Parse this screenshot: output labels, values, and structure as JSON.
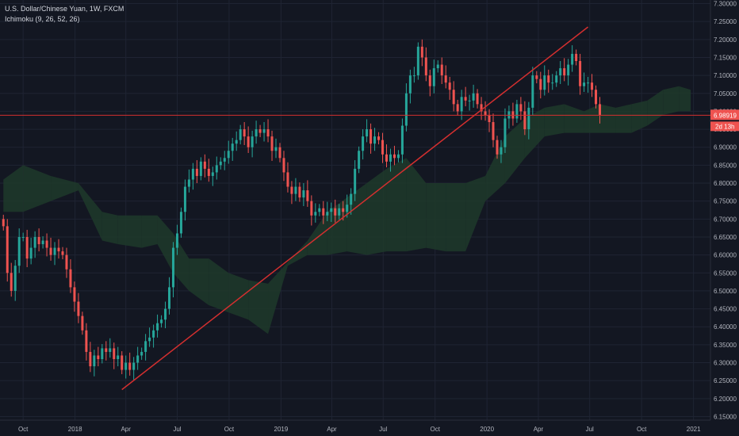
{
  "header": {
    "title": "U.S. Dollar/Chinese Yuan, 1W, FXCM",
    "indicator": "Ichimoku (9, 26, 52, 26)"
  },
  "colors": {
    "background": "#131722",
    "grid": "#1f2433",
    "up": "#26a69a",
    "down": "#ef5350",
    "trendline": "#d32f2f",
    "cloud_bull": "#1e3a2a",
    "cloud_bear": "#4a2226",
    "price_label": "#ef5350",
    "axis_text": "#b2b5be"
  },
  "price_label": {
    "value": "6.98919",
    "countdown": "2d 13h"
  },
  "chart_data": {
    "type": "candlestick",
    "title": "U.S. Dollar/Chinese Yuan, 1W, FXCM",
    "interval": "1W",
    "x_tick_labels": [
      "Oct",
      "2018",
      "Apr",
      "Jul",
      "Oct",
      "2019",
      "Apr",
      "Jul",
      "Oct",
      "2020",
      "Apr",
      "Jul",
      "Oct",
      "2021"
    ],
    "x_tick_dates": [
      "2017-10-01",
      "2018-01-01",
      "2018-04-01",
      "2018-07-01",
      "2018-10-01",
      "2019-01-01",
      "2019-04-01",
      "2019-07-01",
      "2019-10-01",
      "2020-01-01",
      "2020-04-01",
      "2020-07-01",
      "2020-10-01",
      "2021-01-01"
    ],
    "y_tick_labels": [
      "7.30000",
      "7.25000",
      "7.20000",
      "7.15000",
      "7.10000",
      "7.05000",
      "7.00000",
      "6.95000",
      "6.90000",
      "6.85000",
      "6.80000",
      "6.75000",
      "6.70000",
      "6.65000",
      "6.60000",
      "6.55000",
      "6.50000",
      "6.45000",
      "6.40000",
      "6.35000",
      "6.30000",
      "6.25000",
      "6.20000",
      "6.15000"
    ],
    "ylim": [
      6.14,
      7.31
    ],
    "x_range": [
      "2017-08-21",
      "2021-01-31"
    ],
    "grid": true,
    "current_price": 6.98919,
    "candles": [
      {
        "t": "2017-08-27",
        "c": 6.68
      },
      {
        "t": "2017-09-03",
        "c": 6.55
      },
      {
        "t": "2017-09-10",
        "c": 6.5
      },
      {
        "t": "2017-09-17",
        "c": 6.57
      },
      {
        "t": "2017-09-24",
        "c": 6.65
      },
      {
        "t": "2017-10-01",
        "c": 6.65
      },
      {
        "t": "2017-10-08",
        "c": 6.59
      },
      {
        "t": "2017-10-15",
        "c": 6.62
      },
      {
        "t": "2017-10-22",
        "c": 6.65
      },
      {
        "t": "2017-10-29",
        "c": 6.63
      },
      {
        "t": "2017-11-05",
        "c": 6.64
      },
      {
        "t": "2017-11-12",
        "c": 6.62
      },
      {
        "t": "2017-11-19",
        "c": 6.6
      },
      {
        "t": "2017-11-26",
        "c": 6.62
      },
      {
        "t": "2017-12-03",
        "c": 6.61
      },
      {
        "t": "2017-12-10",
        "c": 6.6
      },
      {
        "t": "2017-12-17",
        "c": 6.56
      },
      {
        "t": "2017-12-24",
        "c": 6.51
      },
      {
        "t": "2017-12-31",
        "c": 6.47
      },
      {
        "t": "2018-01-07",
        "c": 6.43
      },
      {
        "t": "2018-01-14",
        "c": 6.39
      },
      {
        "t": "2018-01-21",
        "c": 6.33
      },
      {
        "t": "2018-01-28",
        "c": 6.29
      },
      {
        "t": "2018-02-04",
        "c": 6.32
      },
      {
        "t": "2018-02-11",
        "c": 6.31
      },
      {
        "t": "2018-02-18",
        "c": 6.34
      },
      {
        "t": "2018-02-25",
        "c": 6.33
      },
      {
        "t": "2018-03-04",
        "c": 6.34
      },
      {
        "t": "2018-03-11",
        "c": 6.31
      },
      {
        "t": "2018-03-18",
        "c": 6.32
      },
      {
        "t": "2018-03-25",
        "c": 6.28
      },
      {
        "t": "2018-04-01",
        "c": 6.3
      },
      {
        "t": "2018-04-08",
        "c": 6.28
      },
      {
        "t": "2018-04-15",
        "c": 6.3
      },
      {
        "t": "2018-04-22",
        "c": 6.32
      },
      {
        "t": "2018-04-29",
        "c": 6.33
      },
      {
        "t": "2018-05-06",
        "c": 6.36
      },
      {
        "t": "2018-05-13",
        "c": 6.37
      },
      {
        "t": "2018-05-20",
        "c": 6.39
      },
      {
        "t": "2018-05-27",
        "c": 6.41
      },
      {
        "t": "2018-06-03",
        "c": 6.42
      },
      {
        "t": "2018-06-10",
        "c": 6.45
      },
      {
        "t": "2018-06-17",
        "c": 6.51
      },
      {
        "t": "2018-06-24",
        "c": 6.62
      },
      {
        "t": "2018-07-01",
        "c": 6.66
      },
      {
        "t": "2018-07-08",
        "c": 6.72
      },
      {
        "t": "2018-07-15",
        "c": 6.79
      },
      {
        "t": "2018-07-22",
        "c": 6.81
      },
      {
        "t": "2018-07-29",
        "c": 6.84
      },
      {
        "t": "2018-08-05",
        "c": 6.82
      },
      {
        "t": "2018-08-12",
        "c": 6.86
      },
      {
        "t": "2018-08-19",
        "c": 6.84
      },
      {
        "t": "2018-08-26",
        "c": 6.82
      },
      {
        "t": "2018-09-02",
        "c": 6.83
      },
      {
        "t": "2018-09-09",
        "c": 6.85
      },
      {
        "t": "2018-09-16",
        "c": 6.86
      },
      {
        "t": "2018-09-23",
        "c": 6.87
      },
      {
        "t": "2018-09-30",
        "c": 6.89
      },
      {
        "t": "2018-10-07",
        "c": 6.91
      },
      {
        "t": "2018-10-14",
        "c": 6.92
      },
      {
        "t": "2018-10-21",
        "c": 6.95
      },
      {
        "t": "2018-10-28",
        "c": 6.93
      },
      {
        "t": "2018-11-04",
        "c": 6.9
      },
      {
        "t": "2018-11-11",
        "c": 6.93
      },
      {
        "t": "2018-11-18",
        "c": 6.95
      },
      {
        "t": "2018-11-25",
        "c": 6.94
      },
      {
        "t": "2018-12-02",
        "c": 6.95
      },
      {
        "t": "2018-12-09",
        "c": 6.93
      },
      {
        "t": "2018-12-16",
        "c": 6.89
      },
      {
        "t": "2018-12-23",
        "c": 6.9
      },
      {
        "t": "2018-12-30",
        "c": 6.87
      },
      {
        "t": "2019-01-06",
        "c": 6.83
      },
      {
        "t": "2019-01-13",
        "c": 6.79
      },
      {
        "t": "2019-01-20",
        "c": 6.77
      },
      {
        "t": "2019-01-27",
        "c": 6.79
      },
      {
        "t": "2019-02-03",
        "c": 6.76
      },
      {
        "t": "2019-02-10",
        "c": 6.78
      },
      {
        "t": "2019-02-17",
        "c": 6.75
      },
      {
        "t": "2019-02-24",
        "c": 6.71
      },
      {
        "t": "2019-03-03",
        "c": 6.72
      },
      {
        "t": "2019-03-10",
        "c": 6.73
      },
      {
        "t": "2019-03-17",
        "c": 6.71
      },
      {
        "t": "2019-03-24",
        "c": 6.72
      },
      {
        "t": "2019-03-31",
        "c": 6.73
      },
      {
        "t": "2019-04-07",
        "c": 6.71
      },
      {
        "t": "2019-04-14",
        "c": 6.73
      },
      {
        "t": "2019-04-21",
        "c": 6.72
      },
      {
        "t": "2019-04-28",
        "c": 6.74
      },
      {
        "t": "2019-05-05",
        "c": 6.77
      },
      {
        "t": "2019-05-12",
        "c": 6.84
      },
      {
        "t": "2019-05-19",
        "c": 6.89
      },
      {
        "t": "2019-05-26",
        "c": 6.93
      },
      {
        "t": "2019-06-02",
        "c": 6.95
      },
      {
        "t": "2019-06-09",
        "c": 6.91
      },
      {
        "t": "2019-06-16",
        "c": 6.93
      },
      {
        "t": "2019-06-23",
        "c": 6.92
      },
      {
        "t": "2019-06-30",
        "c": 6.88
      },
      {
        "t": "2019-07-07",
        "c": 6.86
      },
      {
        "t": "2019-07-14",
        "c": 6.88
      },
      {
        "t": "2019-07-21",
        "c": 6.87
      },
      {
        "t": "2019-07-28",
        "c": 6.88
      },
      {
        "t": "2019-08-04",
        "c": 6.96
      },
      {
        "t": "2019-08-11",
        "c": 7.05
      },
      {
        "t": "2019-08-18",
        "c": 7.1
      },
      {
        "t": "2019-08-25",
        "c": 7.1
      },
      {
        "t": "2019-09-01",
        "c": 7.18
      },
      {
        "t": "2019-09-08",
        "c": 7.15
      },
      {
        "t": "2019-09-15",
        "c": 7.1
      },
      {
        "t": "2019-09-22",
        "c": 7.07
      },
      {
        "t": "2019-09-29",
        "c": 7.12
      },
      {
        "t": "2019-10-06",
        "c": 7.13
      },
      {
        "t": "2019-10-13",
        "c": 7.1
      },
      {
        "t": "2019-10-20",
        "c": 7.08
      },
      {
        "t": "2019-10-27",
        "c": 7.06
      },
      {
        "t": "2019-11-03",
        "c": 7.02
      },
      {
        "t": "2019-11-10",
        "c": 7.0
      },
      {
        "t": "2019-11-17",
        "c": 7.04
      },
      {
        "t": "2019-11-24",
        "c": 7.03
      },
      {
        "t": "2019-12-01",
        "c": 7.03
      },
      {
        "t": "2019-12-08",
        "c": 7.05
      },
      {
        "t": "2019-12-15",
        "c": 7.02
      },
      {
        "t": "2019-12-22",
        "c": 7.0
      },
      {
        "t": "2019-12-29",
        "c": 6.99
      },
      {
        "t": "2020-01-05",
        "c": 6.97
      },
      {
        "t": "2020-01-12",
        "c": 6.92
      },
      {
        "t": "2020-01-19",
        "c": 6.88
      },
      {
        "t": "2020-01-26",
        "c": 6.9
      },
      {
        "t": "2020-02-02",
        "c": 6.98
      },
      {
        "t": "2020-02-09",
        "c": 7.0
      },
      {
        "t": "2020-02-16",
        "c": 6.98
      },
      {
        "t": "2020-02-23",
        "c": 7.02
      },
      {
        "t": "2020-03-01",
        "c": 7.0
      },
      {
        "t": "2020-03-08",
        "c": 6.95
      },
      {
        "t": "2020-03-15",
        "c": 7.01
      },
      {
        "t": "2020-03-22",
        "c": 7.1
      },
      {
        "t": "2020-03-29",
        "c": 7.09
      },
      {
        "t": "2020-04-05",
        "c": 7.06
      },
      {
        "t": "2020-04-12",
        "c": 7.1
      },
      {
        "t": "2020-04-19",
        "c": 7.08
      },
      {
        "t": "2020-04-26",
        "c": 7.08
      },
      {
        "t": "2020-05-03",
        "c": 7.1
      },
      {
        "t": "2020-05-10",
        "c": 7.12
      },
      {
        "t": "2020-05-17",
        "c": 7.1
      },
      {
        "t": "2020-05-24",
        "c": 7.13
      },
      {
        "t": "2020-05-31",
        "c": 7.16
      },
      {
        "t": "2020-06-07",
        "c": 7.14
      },
      {
        "t": "2020-06-14",
        "c": 7.07
      },
      {
        "t": "2020-06-21",
        "c": 7.08
      },
      {
        "t": "2020-06-28",
        "c": 7.08
      },
      {
        "t": "2020-07-05",
        "c": 7.06
      },
      {
        "t": "2020-07-12",
        "c": 7.02
      },
      {
        "t": "2020-07-19",
        "c": 6.99
      }
    ],
    "ichimoku": {
      "span_a": [
        {
          "t": "2017-08-27",
          "v": 6.81
        },
        {
          "t": "2017-10-01",
          "v": 6.85
        },
        {
          "t": "2017-11-19",
          "v": 6.82
        },
        {
          "t": "2018-01-07",
          "v": 6.8
        },
        {
          "t": "2018-02-18",
          "v": 6.72
        },
        {
          "t": "2018-03-18",
          "v": 6.71
        },
        {
          "t": "2018-04-29",
          "v": 6.71
        },
        {
          "t": "2018-05-27",
          "v": 6.71
        },
        {
          "t": "2018-06-24",
          "v": 6.66
        },
        {
          "t": "2018-07-22",
          "v": 6.59
        },
        {
          "t": "2018-08-26",
          "v": 6.59
        },
        {
          "t": "2018-09-30",
          "v": 6.55
        },
        {
          "t": "2018-11-04",
          "v": 6.53
        },
        {
          "t": "2018-12-09",
          "v": 6.52
        },
        {
          "t": "2019-01-13",
          "v": 6.58
        },
        {
          "t": "2019-02-17",
          "v": 6.64
        },
        {
          "t": "2019-03-24",
          "v": 6.72
        },
        {
          "t": "2019-04-28",
          "v": 6.76
        },
        {
          "t": "2019-06-02",
          "v": 6.8
        },
        {
          "t": "2019-07-07",
          "v": 6.84
        },
        {
          "t": "2019-08-11",
          "v": 6.87
        },
        {
          "t": "2019-09-15",
          "v": 6.8
        },
        {
          "t": "2019-10-20",
          "v": 6.8
        },
        {
          "t": "2019-11-24",
          "v": 6.8
        },
        {
          "t": "2019-12-29",
          "v": 6.82
        },
        {
          "t": "2020-02-02",
          "v": 6.93
        },
        {
          "t": "2020-03-08",
          "v": 6.98
        },
        {
          "t": "2020-04-12",
          "v": 7.01
        },
        {
          "t": "2020-05-17",
          "v": 7.02
        },
        {
          "t": "2020-06-21",
          "v": 7.0
        },
        {
          "t": "2020-07-19",
          "v": 7.02
        },
        {
          "t": "2020-08-16",
          "v": 7.01
        },
        {
          "t": "2020-09-13",
          "v": 7.02
        },
        {
          "t": "2020-10-11",
          "v": 7.03
        },
        {
          "t": "2020-11-08",
          "v": 7.06
        },
        {
          "t": "2020-12-06",
          "v": 7.07
        },
        {
          "t": "2020-12-27",
          "v": 7.06
        }
      ],
      "span_b": [
        {
          "t": "2017-08-27",
          "v": 6.72
        },
        {
          "t": "2017-10-01",
          "v": 6.72
        },
        {
          "t": "2017-11-19",
          "v": 6.75
        },
        {
          "t": "2018-01-07",
          "v": 6.78
        },
        {
          "t": "2018-02-18",
          "v": 6.64
        },
        {
          "t": "2018-03-18",
          "v": 6.63
        },
        {
          "t": "2018-04-29",
          "v": 6.62
        },
        {
          "t": "2018-05-27",
          "v": 6.63
        },
        {
          "t": "2018-06-24",
          "v": 6.55
        },
        {
          "t": "2018-07-22",
          "v": 6.5
        },
        {
          "t": "2018-08-26",
          "v": 6.46
        },
        {
          "t": "2018-09-30",
          "v": 6.44
        },
        {
          "t": "2018-11-04",
          "v": 6.42
        },
        {
          "t": "2018-12-09",
          "v": 6.38
        },
        {
          "t": "2019-01-13",
          "v": 6.57
        },
        {
          "t": "2019-02-17",
          "v": 6.6
        },
        {
          "t": "2019-03-24",
          "v": 6.6
        },
        {
          "t": "2019-04-28",
          "v": 6.61
        },
        {
          "t": "2019-06-02",
          "v": 6.6
        },
        {
          "t": "2019-07-07",
          "v": 6.61
        },
        {
          "t": "2019-08-11",
          "v": 6.61
        },
        {
          "t": "2019-09-15",
          "v": 6.62
        },
        {
          "t": "2019-10-20",
          "v": 6.61
        },
        {
          "t": "2019-11-24",
          "v": 6.61
        },
        {
          "t": "2019-12-29",
          "v": 6.75
        },
        {
          "t": "2020-02-02",
          "v": 6.8
        },
        {
          "t": "2020-03-08",
          "v": 6.87
        },
        {
          "t": "2020-04-12",
          "v": 6.93
        },
        {
          "t": "2020-05-17",
          "v": 6.94
        },
        {
          "t": "2020-06-21",
          "v": 6.94
        },
        {
          "t": "2020-07-19",
          "v": 6.94
        },
        {
          "t": "2020-08-16",
          "v": 6.94
        },
        {
          "t": "2020-09-13",
          "v": 6.94
        },
        {
          "t": "2020-10-11",
          "v": 6.96
        },
        {
          "t": "2020-11-08",
          "v": 6.99
        },
        {
          "t": "2020-12-06",
          "v": 7.0
        },
        {
          "t": "2020-12-27",
          "v": 7.0
        }
      ]
    },
    "trendline": {
      "from": {
        "t": "2018-03-25",
        "v": 6.225
      },
      "to": {
        "t": "2020-06-28",
        "v": 7.235
      }
    },
    "horizontal_line": 6.98919
  }
}
